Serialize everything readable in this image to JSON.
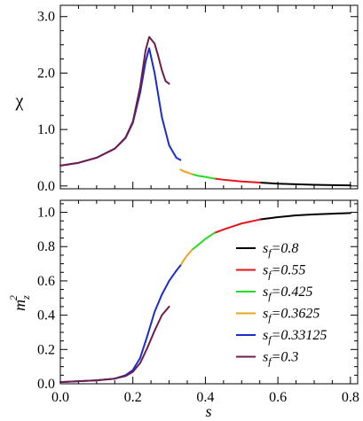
{
  "chart_data": [
    {
      "type": "line",
      "panel": "top",
      "ylabel": "χ",
      "xlabel": "",
      "xlim": [
        0.0,
        0.82
      ],
      "ylim": [
        -0.05,
        3.2
      ],
      "xticks": [
        0.0,
        0.2,
        0.4,
        0.6,
        0.8
      ],
      "xticklabels_shown": false,
      "yticks": [
        0.0,
        1.0,
        2.0,
        3.0
      ],
      "yticklabels": [
        "0.0",
        "1.0",
        "2.0",
        "3.0"
      ],
      "grid": false,
      "series": [
        {
          "name": "s_f=0.8",
          "color": "#000000",
          "x": [
            0.55,
            0.6,
            0.65,
            0.7,
            0.75,
            0.8
          ],
          "y": [
            0.06,
            0.04,
            0.03,
            0.02,
            0.015,
            0.01
          ]
        },
        {
          "name": "s_f=0.55",
          "color": "#e8131b",
          "x": [
            0.425,
            0.45,
            0.5,
            0.55
          ],
          "y": [
            0.13,
            0.11,
            0.08,
            0.06
          ]
        },
        {
          "name": "s_f=0.425",
          "color": "#22dd22",
          "x": [
            0.3625,
            0.38,
            0.4,
            0.425
          ],
          "y": [
            0.21,
            0.18,
            0.16,
            0.13
          ]
        },
        {
          "name": "s_f=0.3625",
          "color": "#f0a21c",
          "x": [
            0.33125,
            0.34,
            0.35,
            0.3625
          ],
          "y": [
            0.29,
            0.26,
            0.24,
            0.21
          ]
        },
        {
          "name": "s_f=0.33125",
          "color": "#1a2ccc",
          "x": [
            0.0,
            0.05,
            0.1,
            0.15,
            0.18,
            0.2,
            0.22,
            0.235,
            0.245,
            0.26,
            0.28,
            0.3,
            0.32,
            0.33125
          ],
          "y": [
            0.36,
            0.41,
            0.5,
            0.66,
            0.85,
            1.12,
            1.65,
            2.2,
            2.44,
            2.0,
            1.22,
            0.72,
            0.5,
            0.46
          ]
        },
        {
          "name": "s_f=0.3",
          "color": "#6e1d4c",
          "x": [
            0.0,
            0.05,
            0.1,
            0.15,
            0.18,
            0.2,
            0.22,
            0.235,
            0.245,
            0.26,
            0.27,
            0.28,
            0.29,
            0.3
          ],
          "y": [
            0.36,
            0.41,
            0.5,
            0.66,
            0.86,
            1.14,
            1.75,
            2.4,
            2.64,
            2.52,
            2.3,
            2.05,
            1.86,
            1.81
          ]
        }
      ]
    },
    {
      "type": "line",
      "panel": "bottom",
      "ylabel": "m_z^2",
      "xlabel": "s",
      "xlim": [
        0.0,
        0.82
      ],
      "ylim": [
        0.0,
        1.07
      ],
      "xticks": [
        0.0,
        0.2,
        0.4,
        0.6,
        0.8
      ],
      "xticklabels": [
        "0.0",
        "0.2",
        "0.4",
        "0.6",
        "0.8"
      ],
      "yticks": [
        0.0,
        0.2,
        0.4,
        0.6,
        0.8,
        1.0
      ],
      "yticklabels": [
        "0.0",
        "0.2",
        "0.4",
        "0.6",
        "0.8",
        "1.0"
      ],
      "grid": false,
      "legend": "right",
      "series": [
        {
          "name": "s_f=0.8",
          "color": "#000000",
          "x": [
            0.55,
            0.6,
            0.65,
            0.7,
            0.75,
            0.8
          ],
          "y": [
            0.958,
            0.972,
            0.982,
            0.988,
            0.992,
            0.996
          ]
        },
        {
          "name": "s_f=0.55",
          "color": "#e8131b",
          "x": [
            0.425,
            0.45,
            0.5,
            0.55
          ],
          "y": [
            0.88,
            0.9,
            0.935,
            0.958
          ]
        },
        {
          "name": "s_f=0.425",
          "color": "#22dd22",
          "x": [
            0.3625,
            0.38,
            0.4,
            0.425
          ],
          "y": [
            0.78,
            0.81,
            0.845,
            0.88
          ]
        },
        {
          "name": "s_f=0.3625",
          "color": "#f0a21c",
          "x": [
            0.33125,
            0.34,
            0.35,
            0.3625
          ],
          "y": [
            0.69,
            0.72,
            0.75,
            0.78
          ]
        },
        {
          "name": "s_f=0.33125",
          "color": "#1a2ccc",
          "x": [
            0.0,
            0.1,
            0.15,
            0.18,
            0.2,
            0.22,
            0.24,
            0.26,
            0.28,
            0.3,
            0.32,
            0.33125
          ],
          "y": [
            0.01,
            0.02,
            0.03,
            0.05,
            0.08,
            0.15,
            0.28,
            0.42,
            0.52,
            0.6,
            0.66,
            0.69
          ]
        },
        {
          "name": "s_f=0.3",
          "color": "#6e1d4c",
          "x": [
            0.0,
            0.1,
            0.15,
            0.18,
            0.2,
            0.22,
            0.24,
            0.26,
            0.28,
            0.3
          ],
          "y": [
            0.01,
            0.02,
            0.03,
            0.045,
            0.07,
            0.12,
            0.21,
            0.31,
            0.4,
            0.45
          ]
        }
      ]
    }
  ],
  "legend_entries": [
    {
      "color": "#000000",
      "prefix": "s",
      "sub": "f",
      "suffix": "=0.8"
    },
    {
      "color": "#e8131b",
      "prefix": "s",
      "sub": "f",
      "suffix": "=0.55"
    },
    {
      "color": "#22dd22",
      "prefix": "s",
      "sub": "f",
      "suffix": "=0.425"
    },
    {
      "color": "#f0a21c",
      "prefix": "s",
      "sub": "f",
      "suffix": "=0.3625"
    },
    {
      "color": "#1a2ccc",
      "prefix": "s",
      "sub": "f",
      "suffix": "=0.33125"
    },
    {
      "color": "#6e1d4c",
      "prefix": "s",
      "sub": "f",
      "suffix": "=0.3"
    }
  ],
  "labels": {
    "chi": "χ",
    "m": "m",
    "m_sub": "z",
    "m_sup": "2",
    "x": "s"
  }
}
